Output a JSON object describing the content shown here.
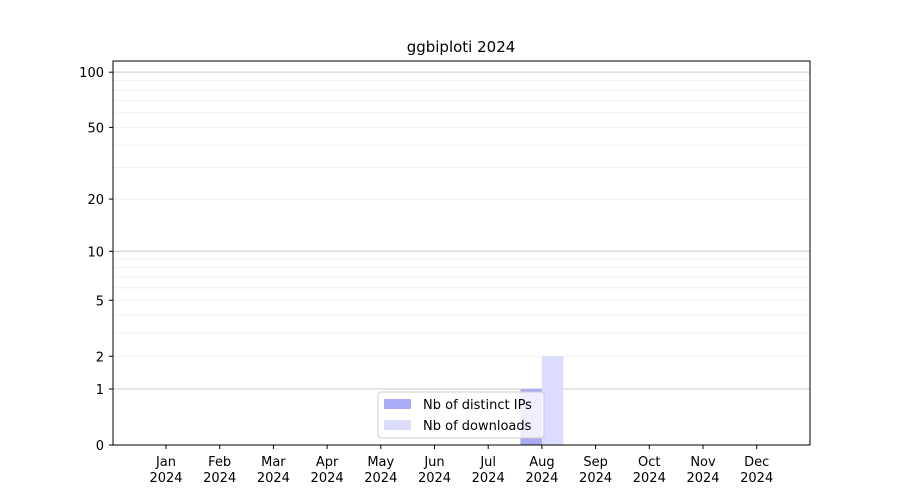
{
  "chart_data": {
    "type": "bar",
    "title": "ggbiploti 2024",
    "xlabel": "",
    "ylabel": "",
    "yscale": "log(y+1)",
    "ylim": [
      0,
      115
    ],
    "yticks": [
      0,
      1,
      2,
      5,
      10,
      20,
      50,
      100
    ],
    "ytick_labels": [
      "0",
      "1",
      "2",
      "5",
      "10",
      "20",
      "50",
      "100"
    ],
    "grid": "horizontal, major and minor",
    "categories": [
      "Jan\n2024",
      "Feb\n2024",
      "Mar\n2024",
      "Apr\n2024",
      "May\n2024",
      "Jun\n2024",
      "Jul\n2024",
      "Aug\n2024",
      "Sep\n2024",
      "Oct\n2024",
      "Nov\n2024",
      "Dec\n2024"
    ],
    "legend_position": "bottom-center",
    "series": [
      {
        "name": "Nb of distinct IPs",
        "color": "#aaaaf5",
        "values": [
          0,
          0,
          0,
          0,
          0,
          0,
          0,
          1,
          0,
          0,
          0,
          0
        ]
      },
      {
        "name": "Nb of downloads",
        "color": "#dcdcfc",
        "values": [
          0,
          0,
          0,
          0,
          0,
          0,
          0,
          2,
          0,
          0,
          0,
          0
        ]
      }
    ]
  }
}
